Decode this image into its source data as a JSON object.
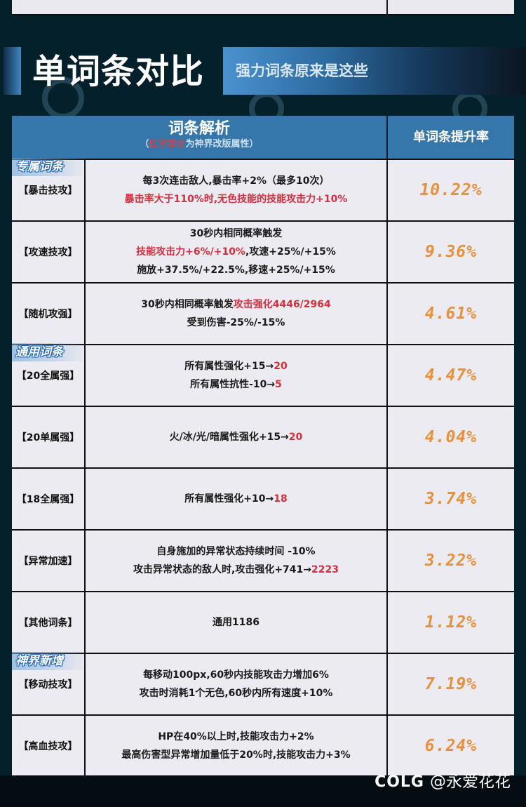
{
  "section": {
    "title": "单词条对比",
    "subtitle": "强力词条原来是这些"
  },
  "table": {
    "header": {
      "desc_title": "词条解析",
      "desc_note_open": "（",
      "desc_note_red": "红字部分",
      "desc_note_rest": "为神界改版属性",
      "desc_note_close": "）",
      "rate_title": "单词条提升率"
    },
    "tags": {
      "exclusive": "专属词条",
      "common": "通用词条",
      "new": "神界新增"
    },
    "rows": [
      {
        "label": "【暴击技攻】",
        "lines": [
          {
            "parts": [
              {
                "text": "每3次连击敌人,暴击率+2%（最多10次）",
                "red": false
              }
            ]
          },
          {
            "parts": [
              {
                "text": "暴击率大于110%时,无色技能的技能攻击力+10%",
                "red": true
              }
            ]
          }
        ],
        "rate": "10.22%"
      },
      {
        "label": "【攻速技攻】",
        "lines": [
          {
            "parts": [
              {
                "text": "30秒内相同概率触发",
                "red": false
              }
            ]
          },
          {
            "parts": [
              {
                "text": "技能攻击力+6%/+10%",
                "red": true
              },
              {
                "text": ",攻速+25%/+15%",
                "red": false
              }
            ]
          },
          {
            "parts": [
              {
                "text": "施放+37.5%/+22.5%,移速+25%/+15%",
                "red": false
              }
            ]
          }
        ],
        "rate": "9.36%"
      },
      {
        "label": "【随机攻强】",
        "lines": [
          {
            "parts": [
              {
                "text": "30秒内相同概率触发",
                "red": false
              },
              {
                "text": "攻击强化4446/2964",
                "red": true
              }
            ]
          },
          {
            "parts": [
              {
                "text": "受到伤害-25%/-15%",
                "red": false
              }
            ]
          }
        ],
        "rate": "4.61%"
      },
      {
        "label": "【20全属强】",
        "lines": [
          {
            "parts": [
              {
                "text": "所有属性强化+15→",
                "red": false
              },
              {
                "text": "20",
                "red": true
              }
            ]
          },
          {
            "parts": [
              {
                "text": "所有属性抗性-10→",
                "red": false
              },
              {
                "text": "5",
                "red": true
              }
            ]
          }
        ],
        "rate": "4.47%"
      },
      {
        "label": "【20单属强】",
        "lines": [
          {
            "parts": [
              {
                "text": "火/冰/光/暗属性强化+15→",
                "red": false
              },
              {
                "text": "20",
                "red": true
              }
            ]
          }
        ],
        "rate": "4.04%"
      },
      {
        "label": "【18全属强】",
        "lines": [
          {
            "parts": [
              {
                "text": "所有属性强化+10→",
                "red": false
              },
              {
                "text": "18",
                "red": true
              }
            ]
          }
        ],
        "rate": "3.74%"
      },
      {
        "label": "【异常加速】",
        "lines": [
          {
            "parts": [
              {
                "text": "自身施加的异常状态持续时间 -10%",
                "red": false
              }
            ]
          },
          {
            "parts": [
              {
                "text": "攻击异常状态的敌人时,攻击强化+741→",
                "red": false
              },
              {
                "text": "2223",
                "red": true
              }
            ]
          }
        ],
        "rate": "3.22%"
      },
      {
        "label": "【其他词条】",
        "lines": [
          {
            "parts": [
              {
                "text": "通用1186",
                "red": false
              }
            ]
          }
        ],
        "rate": "1.12%"
      },
      {
        "label": "【移动技攻】",
        "lines": [
          {
            "parts": [
              {
                "text": "每移动100px,60秒内技能攻击力增加6%",
                "red": false
              }
            ]
          },
          {
            "parts": [
              {
                "text": "攻击时消耗1个无色,60秒内所有速度+10%",
                "red": false
              }
            ]
          }
        ],
        "rate": "7.19%"
      },
      {
        "label": "【高血技攻】",
        "lines": [
          {
            "parts": [
              {
                "text": "HP在40%以上时,技能攻击力+2%",
                "red": false
              }
            ]
          },
          {
            "parts": [
              {
                "text": "最高伤害型异常增加量低于20%时,技能攻击力+3%",
                "red": false
              }
            ]
          }
        ],
        "rate": "6.24%"
      }
    ]
  },
  "footer": {
    "logo": "COLG",
    "author": "@永爱花花"
  },
  "colors": {
    "background": "#03202b",
    "header_blue": "#3577aa",
    "cell_bg": "#ecebf1",
    "highlight_red": "#d32f3d",
    "rate_orange": "#e9913a"
  }
}
